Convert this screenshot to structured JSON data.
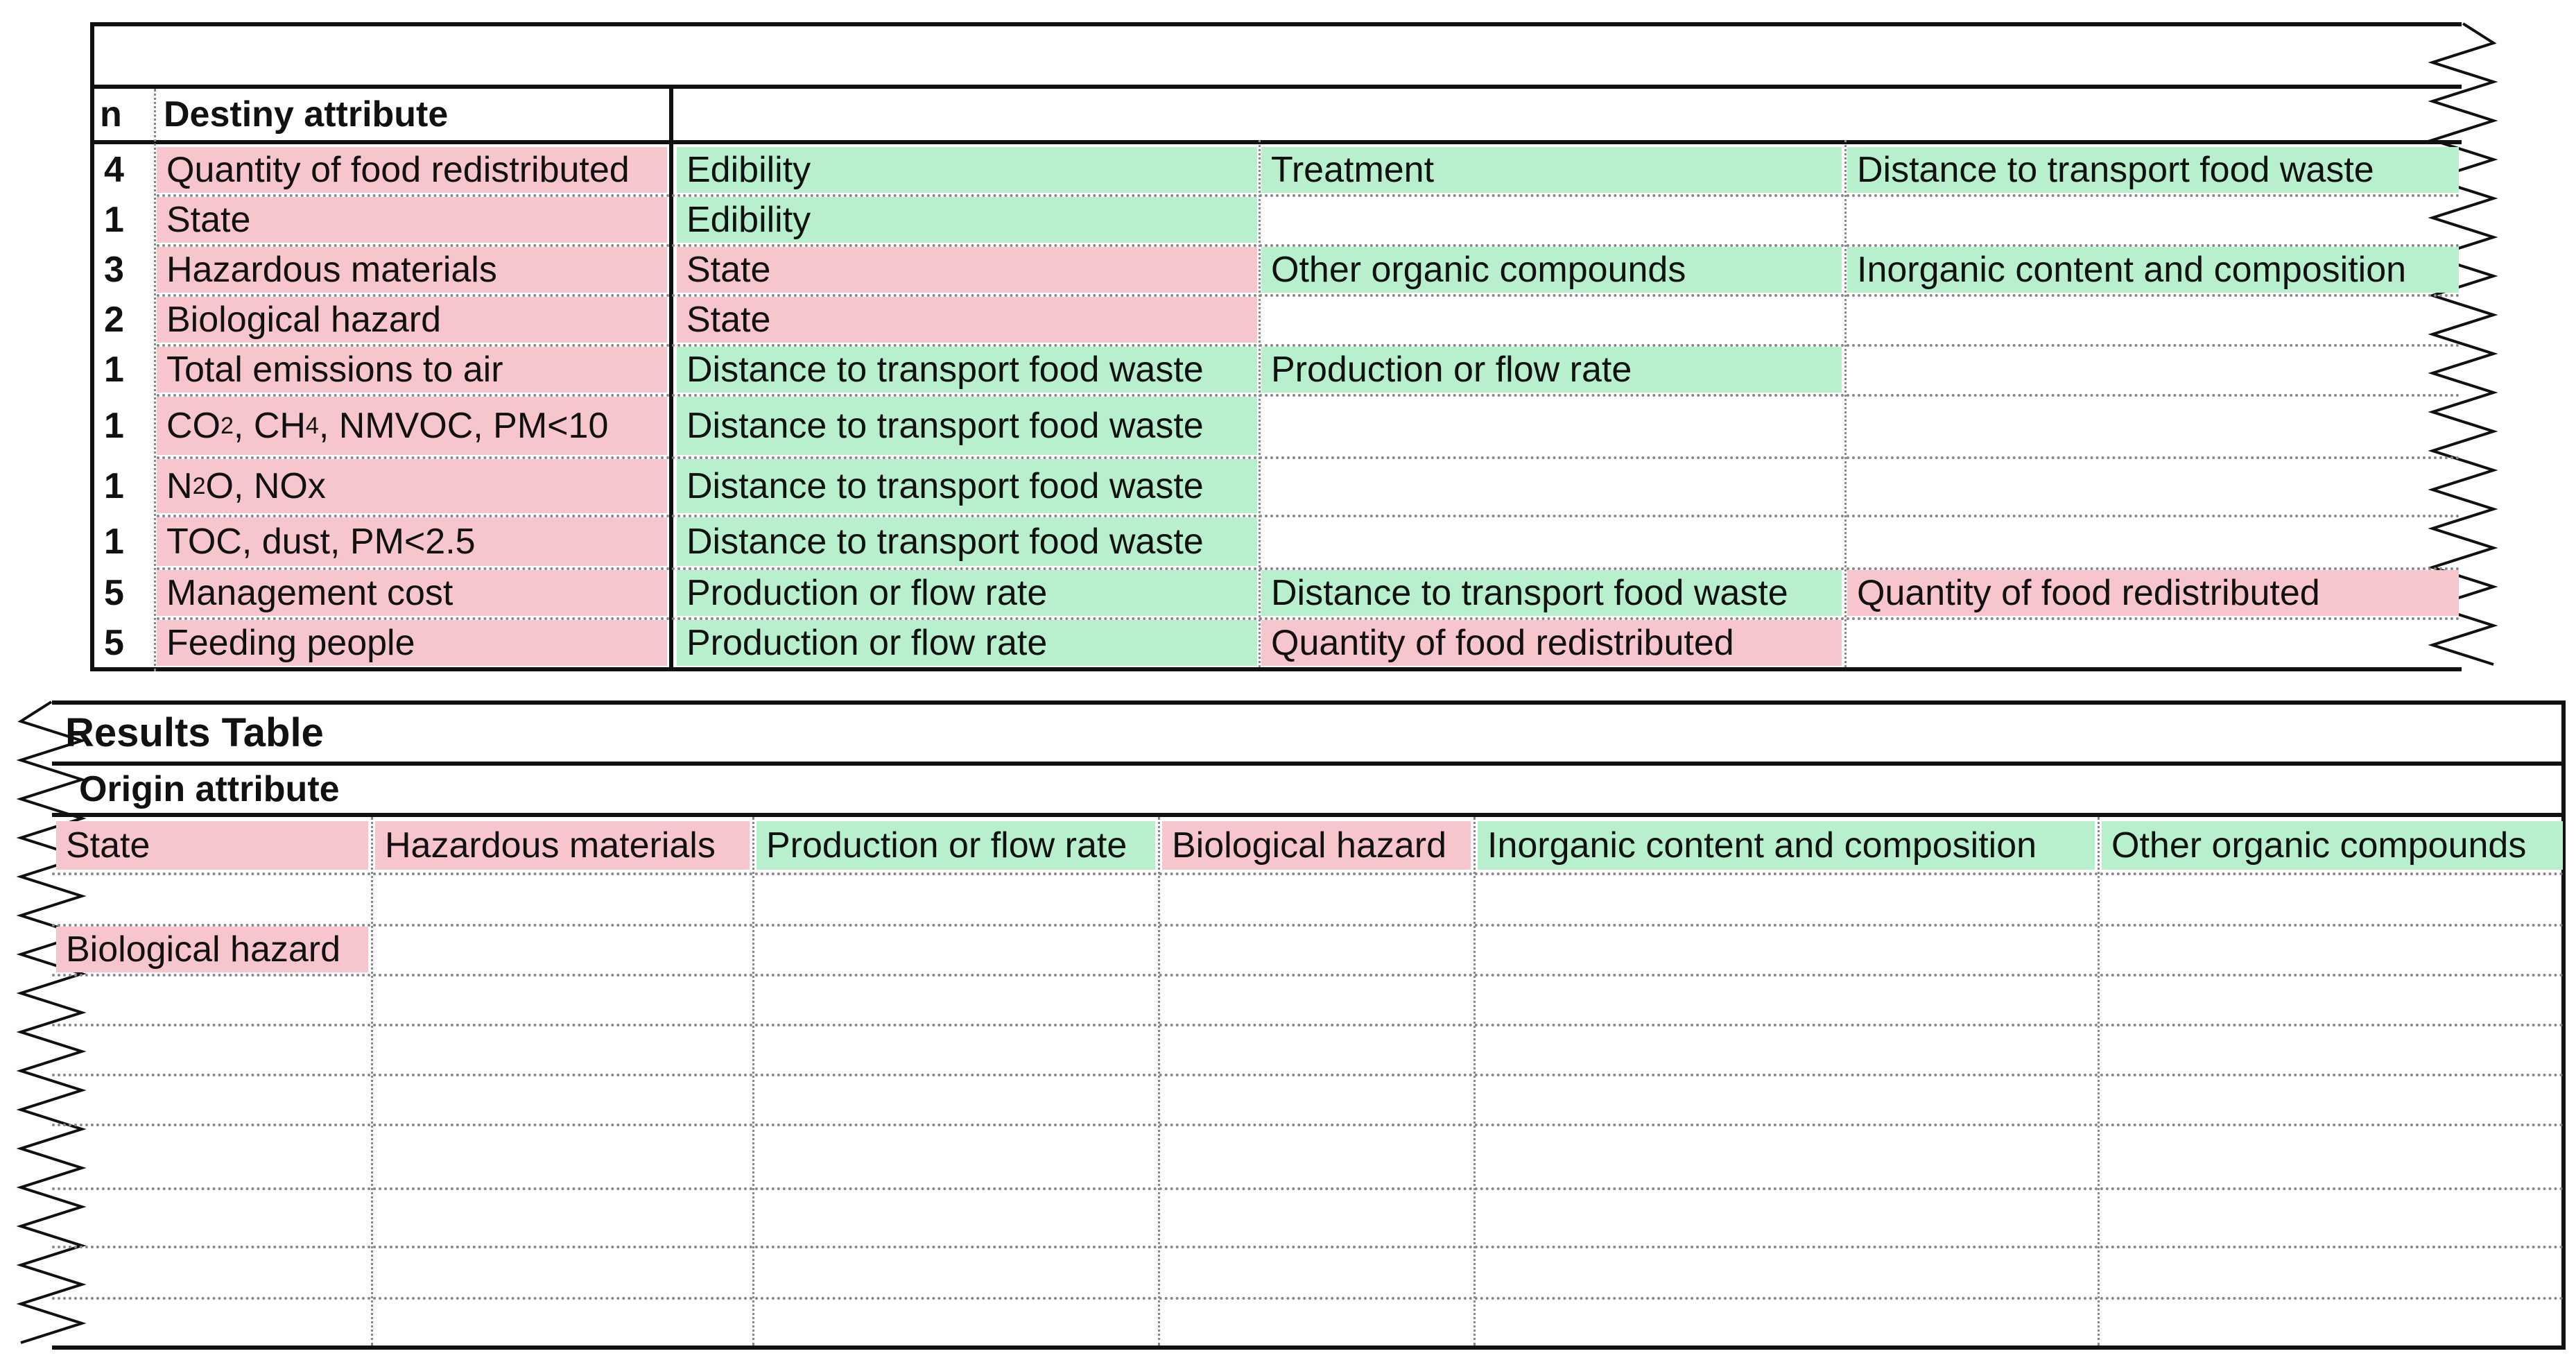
{
  "top_table": {
    "col_n_header": "n",
    "col_destiny_header": "Destiny attribute",
    "rows": [
      {
        "n": "4",
        "destiny": "Quantity of food redistributed",
        "d_color": "pink",
        "c1": "Edibility",
        "c1_color": "green",
        "c2": "Treatment",
        "c2_color": "green",
        "c3": "Distance to transport food waste",
        "c3_color": "green"
      },
      {
        "n": "1",
        "destiny": "State",
        "d_color": "pink",
        "c1": "Edibility",
        "c1_color": "green",
        "c2": "",
        "c2_color": "",
        "c3": "",
        "c3_color": ""
      },
      {
        "n": "3",
        "destiny": "Hazardous materials",
        "d_color": "pink",
        "c1": "State",
        "c1_color": "pink",
        "c2": "Other organic compounds",
        "c2_color": "green",
        "c3": "Inorganic content and composition",
        "c3_color": "green"
      },
      {
        "n": "2",
        "destiny": "Biological hazard",
        "d_color": "pink",
        "c1": "State",
        "c1_color": "pink",
        "c2": "",
        "c2_color": "",
        "c3": "",
        "c3_color": ""
      },
      {
        "n": "1",
        "destiny": "Total emissions to air",
        "d_color": "pink",
        "c1": "Distance to transport food waste",
        "c1_color": "green",
        "c2": "Production or flow rate",
        "c2_color": "green",
        "c3": "",
        "c3_color": ""
      },
      {
        "n": "1",
        "destiny": "CO2, CH4, NMVOC, PM<10",
        "d_color": "pink",
        "c1": "Distance to transport food waste",
        "c1_color": "green",
        "c2": "",
        "c2_color": "",
        "c3": "",
        "c3_color": ""
      },
      {
        "n": "1",
        "destiny": "N2O, NOx",
        "d_color": "pink",
        "c1": "Distance to transport food waste",
        "c1_color": "green",
        "c2": "",
        "c2_color": "",
        "c3": "",
        "c3_color": ""
      },
      {
        "n": "1",
        "destiny": "TOC, dust, PM<2.5",
        "d_color": "pink",
        "c1": "Distance to transport food waste",
        "c1_color": "green",
        "c2": "",
        "c2_color": "",
        "c3": "",
        "c3_color": ""
      },
      {
        "n": "5",
        "destiny": "Management cost",
        "d_color": "pink",
        "c1": "Production or flow rate",
        "c1_color": "green",
        "c2": "Distance to transport food waste",
        "c2_color": "green",
        "c3": "Quantity of food redistributed",
        "c3_color": "pink"
      },
      {
        "n": "5",
        "destiny": "Feeding people",
        "d_color": "pink",
        "c1": "Production or flow rate",
        "c1_color": "green",
        "c2": "Quantity of food redistributed",
        "c2_color": "pink",
        "c3": "",
        "c3_color": ""
      }
    ]
  },
  "results_table": {
    "title": "Results Table",
    "subtitle": "Origin attribute",
    "headers": [
      {
        "label": "State",
        "color": "pink"
      },
      {
        "label": "Hazardous materials",
        "color": "pink"
      },
      {
        "label": "Production or flow rate",
        "color": "green"
      },
      {
        "label": "Biological hazard",
        "color": "pink"
      },
      {
        "label": "Inorganic content and composition",
        "color": "green"
      },
      {
        "label": "Other organic compounds",
        "color": "green"
      }
    ],
    "rows": [
      [
        "",
        "",
        "",
        "",
        "",
        ""
      ],
      [
        "Biological hazard",
        "",
        "",
        "",
        "",
        ""
      ],
      [
        "",
        "",
        "",
        "",
        "",
        ""
      ],
      [
        "",
        "",
        "",
        "",
        "",
        ""
      ],
      [
        "",
        "",
        "",
        "",
        "",
        ""
      ],
      [
        "",
        "",
        "",
        "",
        "",
        ""
      ],
      [
        "",
        "",
        "",
        "",
        "",
        ""
      ],
      [
        "",
        "",
        "",
        "",
        "",
        ""
      ],
      [
        "",
        "",
        "",
        "",
        "",
        ""
      ]
    ],
    "row_colors": [
      [
        "",
        "",
        "",
        "",
        "",
        ""
      ],
      [
        "pink",
        "",
        "",
        "",
        "",
        ""
      ],
      [
        "",
        "",
        "",
        "",
        "",
        ""
      ],
      [
        "",
        "",
        "",
        "",
        "",
        ""
      ],
      [
        "",
        "",
        "",
        "",
        "",
        ""
      ],
      [
        "",
        "",
        "",
        "",
        "",
        ""
      ],
      [
        "",
        "",
        "",
        "",
        "",
        ""
      ],
      [
        "",
        "",
        "",
        "",
        "",
        ""
      ],
      [
        "",
        "",
        "",
        "",
        "",
        ""
      ]
    ]
  },
  "colors": {
    "pink": "#f7c6cc",
    "green": "#b8efcd",
    "border": "#111111"
  }
}
